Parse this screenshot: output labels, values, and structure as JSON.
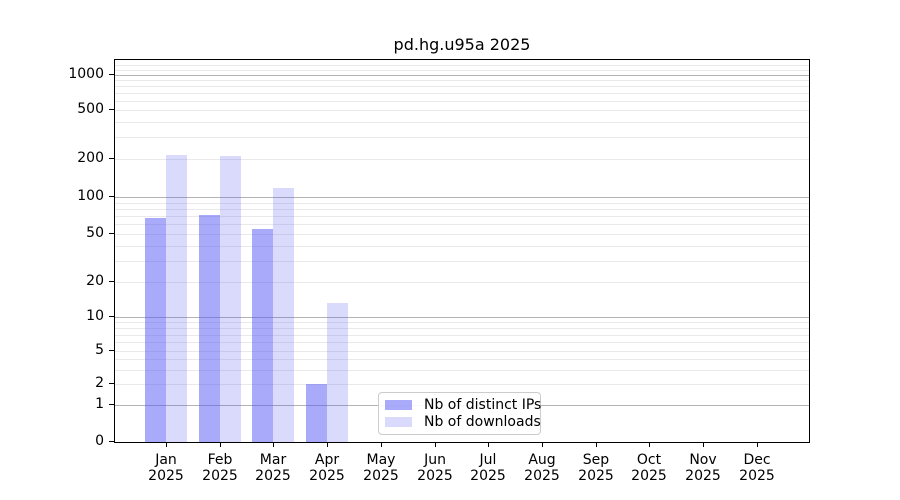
{
  "chart_data": {
    "type": "bar",
    "title": "pd.hg.u95a 2025",
    "months": [
      "Jan",
      "Feb",
      "Mar",
      "Apr",
      "May",
      "Jun",
      "Jul",
      "Aug",
      "Sep",
      "Oct",
      "Nov",
      "Dec"
    ],
    "year": "2025",
    "series": [
      {
        "name": "Nb of distinct IPs",
        "color": "rgba(85,85,245,0.50)",
        "values": [
          68,
          71,
          55,
          2,
          0,
          0,
          0,
          0,
          0,
          0,
          0,
          0
        ]
      },
      {
        "name": "Nb of downloads",
        "color": "rgba(85,85,245,0.22)",
        "values": [
          218,
          214,
          117,
          13,
          0,
          0,
          0,
          0,
          0,
          0,
          0,
          0
        ]
      }
    ],
    "y_ticks": [
      0,
      1,
      2,
      5,
      10,
      20,
      50,
      100,
      200,
      500,
      1000
    ],
    "ylim": [
      0,
      1300
    ],
    "y_scale": "log-like with 0 baseline",
    "xlabel": "",
    "ylabel": "",
    "grid": {
      "vertical": false,
      "major_color": "#b3b3b3",
      "minor_color": "#e9e9e9"
    },
    "legend": {
      "position": "inside-bottom-center",
      "border_color": "#cccccc",
      "background": "#ffffff"
    },
    "axis_color": "#000000",
    "text_color": "#000000"
  }
}
